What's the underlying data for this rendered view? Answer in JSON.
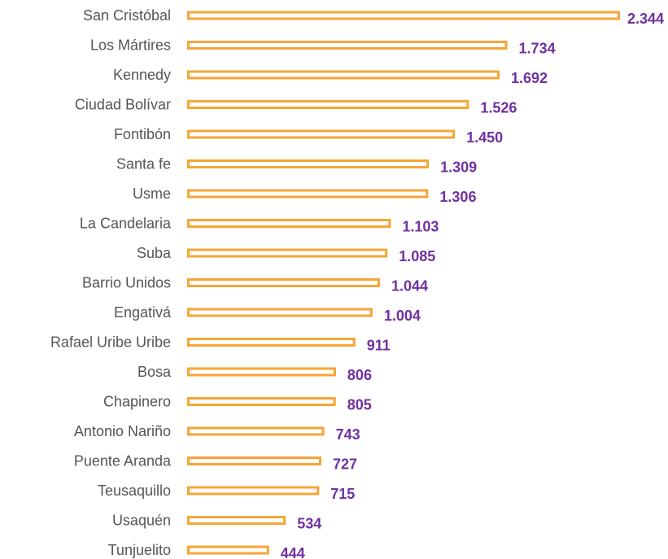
{
  "chart_data": {
    "type": "bar",
    "orientation": "horizontal",
    "color": "#f7a535",
    "label_color": "#7030a0",
    "categories": [
      "San Cristóbal",
      "Los Mártires",
      "Kennedy",
      "Ciudad Bolívar",
      "Fontibón",
      "Santa fe",
      "Usme",
      "La Candelaria",
      "Suba",
      "Barrio Unidos",
      "Engativá",
      "Rafael Uribe Uribe",
      "Bosa",
      "Chapinero",
      "Antonio Nariño",
      "Puente Aranda",
      "Teusaquillo",
      "Usaquén",
      "Tunjuelito"
    ],
    "values": [
      2344,
      1734,
      1692,
      1526,
      1450,
      1309,
      1306,
      1103,
      1085,
      1044,
      1004,
      911,
      806,
      805,
      743,
      727,
      715,
      534,
      444
    ],
    "value_labels": [
      "2.344",
      "1.734",
      "1.692",
      "1.526",
      "1.450",
      "1.309",
      "1.306",
      "1.103",
      "1.085",
      "1.044",
      "1.004",
      "911",
      "806",
      "805",
      "743",
      "727",
      "715",
      "534",
      "444"
    ]
  }
}
